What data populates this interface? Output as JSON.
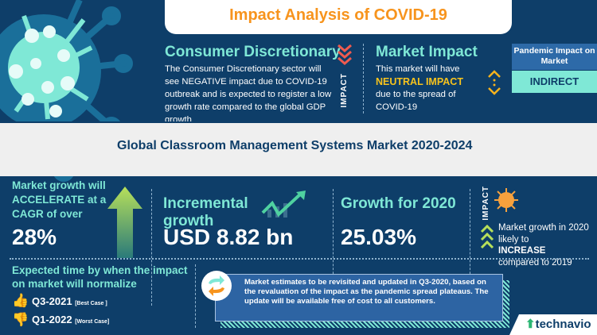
{
  "header": {
    "title": "Impact Analysis of COVID-19"
  },
  "sector": {
    "heading": "Consumer Discretionary",
    "text": "The Consumer Discretionary sector will see NEGATIVE impact due to COVID-19 outbreak and is expected to register a low growth rate compared to the global GDP growth",
    "impact_label": "IMPACT"
  },
  "market_impact": {
    "heading": "Market Impact",
    "line1": "This market will have",
    "highlight": "NEUTRAL IMPACT",
    "line2": "due to the spread of COVID-19"
  },
  "pandemic": {
    "label": "Pandemic Impact on Market",
    "value": "INDIRECT"
  },
  "market_title": "Global Classroom Management Systems Market 2020-2024",
  "stats": {
    "cagr": {
      "text": "Market growth will ACCELERATE at a CAGR of over",
      "value": "28%"
    },
    "incremental": {
      "label": "Incremental growth",
      "value": "USD 8.82 bn"
    },
    "growth2020": {
      "label": "Growth for 2020",
      "value": "25.03%"
    },
    "impact": {
      "label": "IMPACT",
      "line1": "Market growth in 2020 likely to",
      "highlight": "INCREASE",
      "line2": "compared to 2019"
    }
  },
  "normalize": {
    "heading": "Expected time by when the impact on market will normalize",
    "best": {
      "value": "Q3-2021",
      "tag": "[Best Case ]"
    },
    "worst": {
      "value": "Q1-2022",
      "tag": "[Worst Case]"
    }
  },
  "note": "Market estimates to be revisited and updated in Q3-2020, based on the revaluation of the impact as the pandemic spread plateaus. The update will be available free of cost to all customers.",
  "brand": "technavio",
  "colors": {
    "navy": "#0e3e69",
    "teal": "#7fe8d6",
    "orange": "#f7941d",
    "green": "#b7e05a",
    "red": "#ef5a4f"
  }
}
